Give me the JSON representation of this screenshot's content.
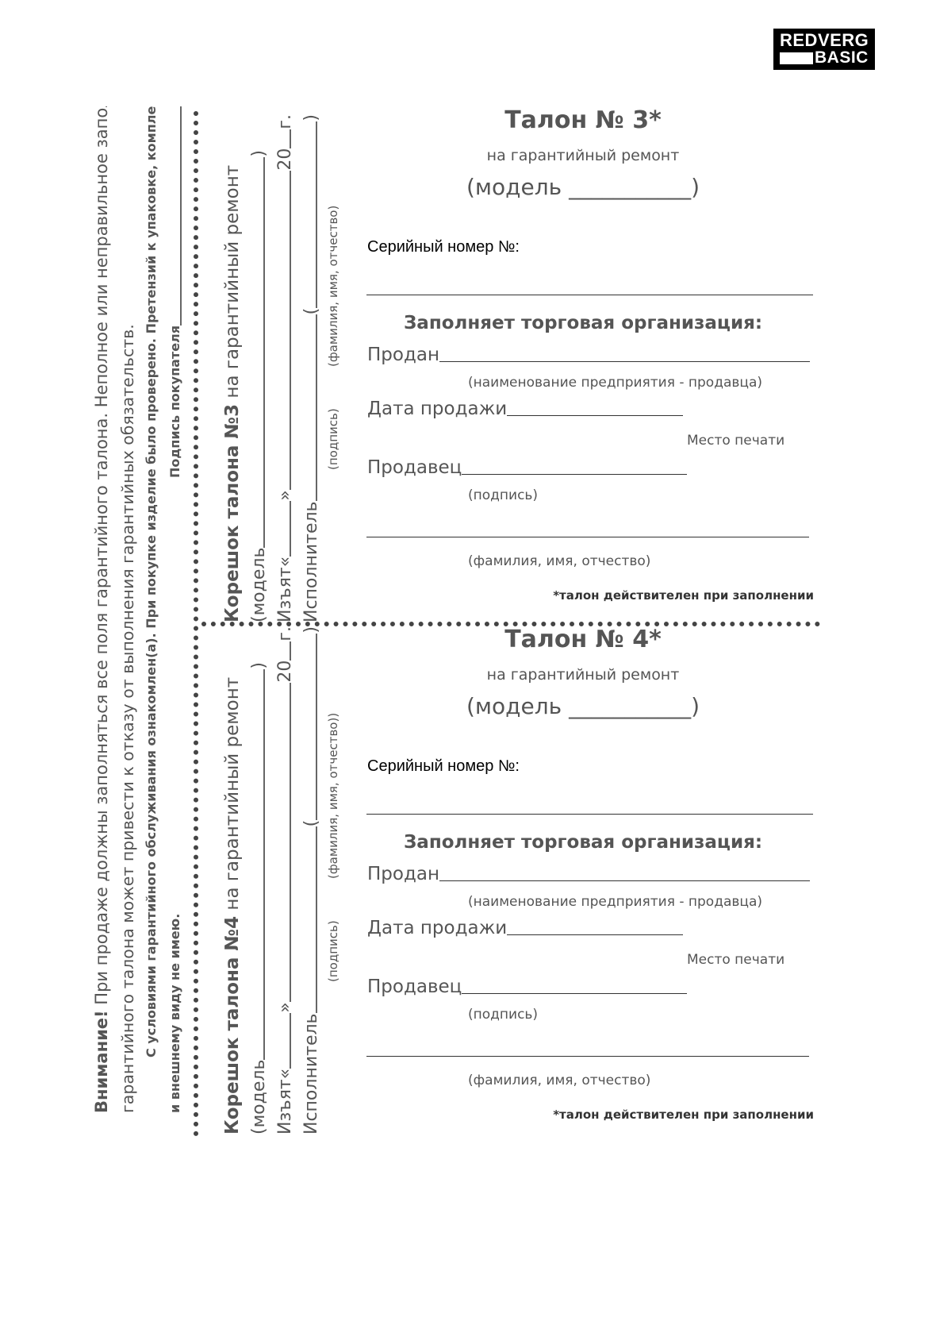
{
  "logo": {
    "line1": "REDVERG",
    "line2": "BASIC"
  },
  "notice": {
    "lead": "Внимание!",
    "line1": " При продаже должны заполняться все поля гарантийного талона. Неполное или неправильное заполнение",
    "line2": "гарантийного талона может привести к отказу от выполнения гарантийных обязательств.",
    "line3": "С условиями гарантийного обслуживания ознакомлен(а). При покупке изделие было проверено. Претензий к упаковке, комплектации",
    "line4": "и внешнему виду не имею.",
    "signature": "Подпись покупателя"
  },
  "stubs": [
    {
      "title_bold": "Корешок талона №3",
      "title_rest": " на гарантийный ремонт",
      "model": "(модель",
      "close": ")",
      "taken": "Изъят«",
      "quote_close": "»",
      "year": "20",
      "year_suffix": "г.",
      "executor": "Исполнитель",
      "open": "(",
      "sign_caption": "(подпись)",
      "name_caption": "(фамилия, имя, отчество)"
    },
    {
      "title_bold": "Корешок талона №4",
      "title_rest": " на гарантийный ремонт",
      "model": "(модель",
      "close": ")",
      "taken": "Изъят«",
      "quote_close": "»",
      "year": "20",
      "year_suffix": "г.",
      "executor": "Исполнитель",
      "open": "(",
      "sign_caption": "(подпись)",
      "name_caption": "(фамилия, имя, отчество))"
    }
  ],
  "talons": [
    {
      "title": "Талон № 3*",
      "subtitle": "на гарантийный ремонт",
      "model": "(модель ___________)",
      "serial": "Серийный номер №:",
      "org_heading": "Заполняет торговая организация:",
      "sold": "Продан",
      "sold_caption": "(наименование предприятия - продавца)",
      "sale_date": "Дата продажи",
      "stamp": "Место печати",
      "seller": "Продавец",
      "sign_caption": "(подпись)",
      "name_caption": "(фамилия, имя, отчество)",
      "validity_note": "*талон действителен при заполнении"
    },
    {
      "title": "Талон № 4*",
      "subtitle": "на гарантийный ремонт",
      "model": "(модель ___________)",
      "serial": "Серийный номер №:",
      "org_heading": "Заполняет торговая организация:",
      "sold": "Продан",
      "sold_caption": "(наименование предприятия - продавца)",
      "sale_date": "Дата продажи",
      "stamp": "Место печати",
      "seller": "Продавец",
      "sign_caption": "(подпись)",
      "name_caption": "(фамилия, имя, отчество)",
      "validity_note": "*талон действителен при заполнении"
    }
  ]
}
